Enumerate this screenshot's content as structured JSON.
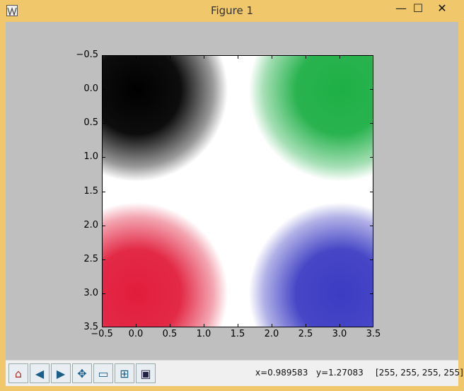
{
  "window": {
    "title": "Figure 1",
    "minimize_label": "—",
    "maximize_label": "☐",
    "close_label": "✕"
  },
  "toolbar": {
    "items": [
      {
        "icon": "home-icon",
        "glyph": "⌂"
      },
      {
        "icon": "back-arrow-icon",
        "glyph": "◀"
      },
      {
        "icon": "forward-arrow-icon",
        "glyph": "▶"
      },
      {
        "icon": "pan-icon",
        "glyph": "✥"
      },
      {
        "icon": "zoom-to-rectangle-icon",
        "glyph": "▭"
      },
      {
        "icon": "configure-subplots-icon",
        "glyph": "⊞"
      },
      {
        "icon": "save-icon",
        "glyph": "▣"
      }
    ]
  },
  "status": {
    "x": "x=0.989583",
    "y": "y=1.27083",
    "pixel": "[255, 255, 255, 255]"
  },
  "chart_data": {
    "type": "heatmap",
    "title": "",
    "xlabel": "",
    "ylabel": "",
    "xlim": [
      -0.5,
      3.5
    ],
    "ylim": [
      3.5,
      -0.5
    ],
    "x_ticks": [
      "−0.5",
      "0.0",
      "0.5",
      "1.0",
      "1.5",
      "2.0",
      "2.5",
      "3.0",
      "3.5"
    ],
    "y_ticks": [
      "−0.5",
      "0.0",
      "0.5",
      "1.0",
      "1.5",
      "2.0",
      "2.5",
      "3.0",
      "3.5"
    ],
    "grid": false,
    "pixels": [
      {
        "col": 0,
        "row": 0,
        "rgba": [
          0,
          0,
          0,
          255
        ],
        "name": "black"
      },
      {
        "col": 3,
        "row": 0,
        "rgba": [
          30,
          175,
          70,
          255
        ],
        "name": "green"
      },
      {
        "col": 0,
        "row": 3,
        "rgba": [
          225,
          30,
          60,
          255
        ],
        "name": "red"
      },
      {
        "col": 3,
        "row": 3,
        "rgba": [
          60,
          60,
          195,
          255
        ],
        "name": "blue"
      }
    ],
    "colors": {
      "black": "#000000",
      "green": "#1eaf46",
      "red": "#e11e3c",
      "blue": "#3c3cc3"
    }
  }
}
